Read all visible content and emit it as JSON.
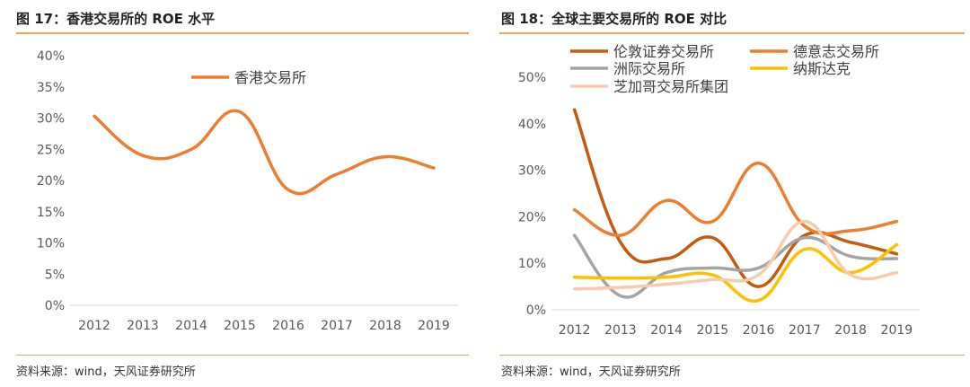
{
  "left": {
    "title": "图 17：香港交易所的 ROE 水平",
    "source": "资料来源：wind，天风证券研究所",
    "chart_data": {
      "type": "line",
      "title": "",
      "xlabel": "",
      "ylabel": "",
      "categories": [
        "2012",
        "2013",
        "2014",
        "2015",
        "2016",
        "2017",
        "2018",
        "2019"
      ],
      "y_ticks": [
        "0%",
        "5%",
        "10%",
        "15%",
        "20%",
        "25%",
        "30%",
        "35%",
        "40%"
      ],
      "ylim": [
        0,
        40
      ],
      "grid": false,
      "legend": "top-center",
      "series": [
        {
          "name": "香港交易所",
          "color": "#ed7d31",
          "values": [
            30.3,
            24.0,
            25.0,
            31.0,
            18.5,
            21.0,
            23.8,
            22.0
          ]
        }
      ]
    }
  },
  "right": {
    "title": "图 18：全球主要交易所的 ROE 对比",
    "source": "资料来源：wind，天风证券研究所",
    "chart_data": {
      "type": "line",
      "title": "",
      "xlabel": "",
      "ylabel": "",
      "categories": [
        "2012",
        "2013",
        "2014",
        "2015",
        "2016",
        "2017",
        "2018",
        "2019"
      ],
      "y_ticks": [
        "0%",
        "10%",
        "20%",
        "30%",
        "40%",
        "50%"
      ],
      "ylim": [
        0,
        50
      ],
      "grid": false,
      "legend": "top",
      "series": [
        {
          "name": "伦敦证券交易所",
          "color": "#c55a11",
          "values": [
            43.0,
            14.5,
            11.0,
            15.5,
            5.0,
            16.0,
            14.5,
            12.0
          ]
        },
        {
          "name": "德意志交易所",
          "color": "#ed7d31",
          "values": [
            21.5,
            16.0,
            23.5,
            19.0,
            31.5,
            18.0,
            17.0,
            19.0
          ]
        },
        {
          "name": "洲际交易所",
          "color": "#a5a5a5",
          "values": [
            16.0,
            3.0,
            8.0,
            9.0,
            9.0,
            15.5,
            11.5,
            11.0
          ]
        },
        {
          "name": "纳斯达克",
          "color": "#ffc000",
          "values": [
            7.0,
            6.8,
            7.0,
            7.5,
            2.0,
            13.0,
            8.0,
            14.0
          ]
        },
        {
          "name": "芝加哥交易所集团",
          "color": "#f8cbad",
          "values": [
            4.5,
            4.8,
            5.5,
            6.5,
            7.5,
            19.0,
            7.5,
            8.0
          ]
        }
      ]
    }
  }
}
